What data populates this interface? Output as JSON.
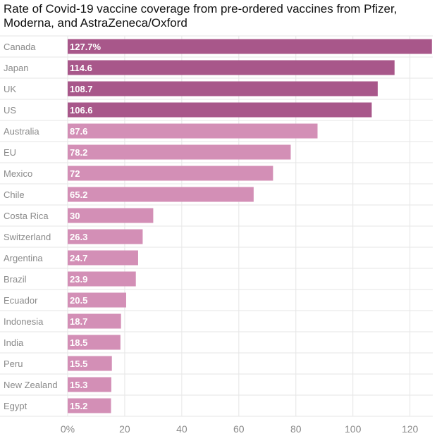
{
  "chart_data": {
    "type": "bar",
    "orientation": "horizontal",
    "title": "Rate of Covid-19 vaccine coverage from pre-ordered vaccines from Pfizer, Moderna, and AstraZeneca/Oxford",
    "xlabel": "",
    "ylabel": "",
    "categories": [
      "Canada",
      "Japan",
      "UK",
      "US",
      "Australia",
      "EU",
      "Mexico",
      "Chile",
      "Costa Rica",
      "Switzerland",
      "Argentina",
      "Brazil",
      "Ecuador",
      "Indonesia",
      "India",
      "Peru",
      "New Zealand",
      "Egypt"
    ],
    "values": [
      127.7,
      114.6,
      108.7,
      106.6,
      87.6,
      78.2,
      72,
      65.2,
      30,
      26.3,
      24.7,
      23.9,
      20.5,
      18.7,
      18.5,
      15.5,
      15.3,
      15.2
    ],
    "value_labels": [
      "127.7%",
      "114.6",
      "108.7",
      "106.6",
      "87.6",
      "78.2",
      "72",
      "65.2",
      "30",
      "26.3",
      "24.7",
      "23.9",
      "20.5",
      "18.7",
      "18.5",
      "15.5",
      "15.3",
      "15.2"
    ],
    "highlighted": [
      true,
      true,
      true,
      true,
      false,
      false,
      false,
      false,
      false,
      false,
      false,
      false,
      false,
      false,
      false,
      false,
      false,
      false
    ],
    "xlim": [
      0,
      128
    ],
    "x_ticks": [
      0,
      20,
      40,
      60,
      80,
      100,
      120
    ],
    "x_tick_labels": [
      "0%",
      "20",
      "40",
      "60",
      "80",
      "100",
      "120"
    ],
    "grid": true,
    "colors": {
      "highlight": "#a8578a",
      "base": "#d38fb6",
      "label": "#ffffff",
      "category_text": "#8a8a8a",
      "grid": "#e6e6e6",
      "background": "#ffffff"
    }
  }
}
